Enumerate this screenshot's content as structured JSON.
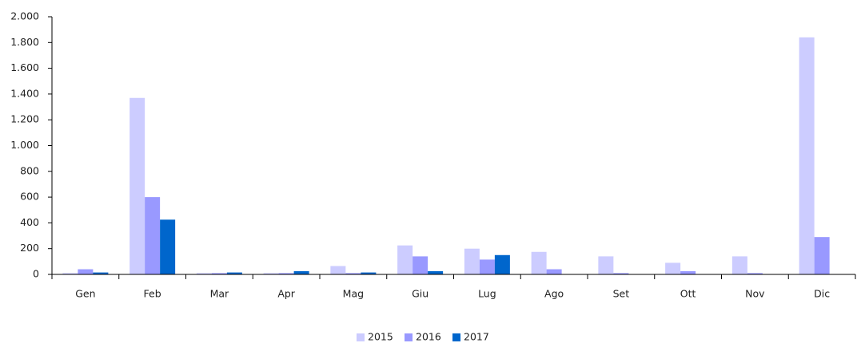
{
  "chart_data": {
    "type": "bar",
    "categories": [
      "Gen",
      "Feb",
      "Mar",
      "Apr",
      "Mag",
      "Giu",
      "Lug",
      "Ago",
      "Set",
      "Ott",
      "Nov",
      "Dic"
    ],
    "series": [
      {
        "name": "2015",
        "color": "#ccccff",
        "values": [
          10,
          1370,
          10,
          10,
          65,
          225,
          200,
          175,
          140,
          90,
          140,
          1840
        ]
      },
      {
        "name": "2016",
        "color": "#9999ff",
        "values": [
          40,
          600,
          10,
          10,
          10,
          140,
          115,
          40,
          10,
          25,
          10,
          290
        ]
      },
      {
        "name": "2017",
        "color": "#0066cc",
        "values": [
          15,
          425,
          15,
          25,
          15,
          25,
          150,
          null,
          null,
          null,
          null,
          null
        ]
      }
    ],
    "ylim": [
      0,
      2000
    ],
    "yticks": [
      0,
      200,
      400,
      600,
      800,
      {
        "value": 1000,
        "label": "1.000"
      },
      {
        "value": 1200,
        "label": "1.200"
      },
      {
        "value": 1400,
        "label": "1.400"
      },
      {
        "value": 1600,
        "label": "1.600"
      },
      {
        "value": 1800,
        "label": "1.800"
      },
      {
        "value": 2000,
        "label": "2.000"
      }
    ],
    "grid": false,
    "legend": "bottom"
  }
}
